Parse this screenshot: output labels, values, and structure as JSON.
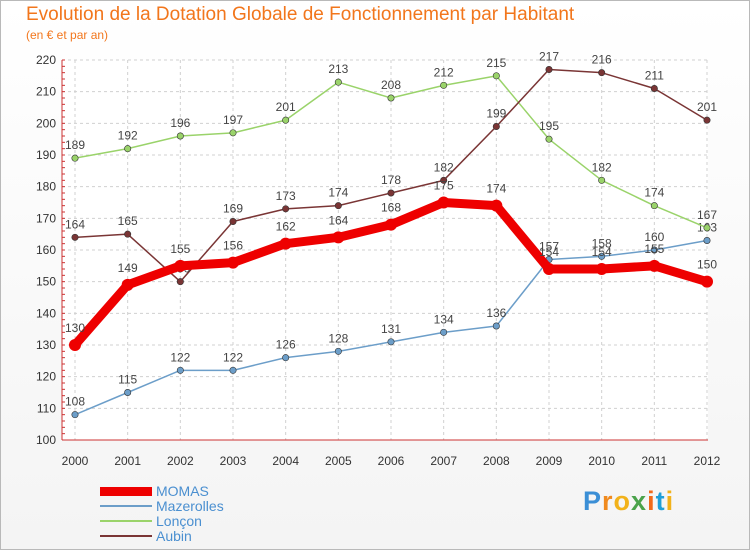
{
  "header": {
    "title": "Evolution de la Dotation Globale de Fonctionnement par Habitant",
    "subtitle": "(en € et par an)"
  },
  "chart_data": {
    "type": "line",
    "title": "Evolution de la Dotation Globale de Fonctionnement par Habitant",
    "subtitle": "(en € et par an)",
    "xlabel": "",
    "ylabel": "",
    "ylim": [
      100,
      220
    ],
    "ytick_step": 10,
    "grid": true,
    "legend_position": "bottom-left",
    "categories": [
      "2000",
      "2001",
      "2002",
      "2003",
      "2004",
      "2005",
      "2006",
      "2007",
      "2008",
      "2009",
      "2010",
      "2011",
      "2012"
    ],
    "series": [
      {
        "name": "MOMAS",
        "color": "#ee0000",
        "values": [
          130,
          149,
          155,
          156,
          162,
          164,
          168,
          175,
          174,
          154,
          154,
          155,
          150
        ]
      },
      {
        "name": "Mazerolles",
        "color": "#6c9ec9",
        "values": [
          108,
          115,
          122,
          122,
          126,
          128,
          131,
          134,
          136,
          157,
          158,
          160,
          163
        ]
      },
      {
        "name": "Lonçon",
        "color": "#9ad36a",
        "values": [
          189,
          192,
          196,
          197,
          201,
          213,
          208,
          212,
          215,
          195,
          182,
          174,
          167
        ]
      },
      {
        "name": "Aubin",
        "color": "#7a3535",
        "values": [
          164,
          165,
          150,
          169,
          173,
          174,
          178,
          182,
          199,
          217,
          216,
          211,
          201
        ]
      }
    ]
  },
  "logo": {
    "letters": [
      "P",
      "r",
      "o",
      "x",
      "i",
      "t",
      "i"
    ]
  }
}
